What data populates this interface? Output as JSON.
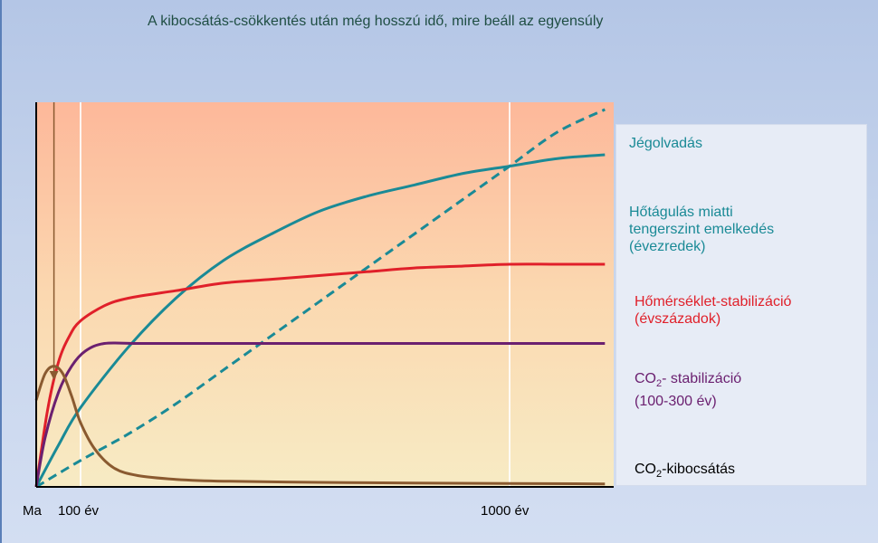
{
  "title": "A kibocsátás-csökkentés után még hosszú idő, mire beáll az egyensúly",
  "chart_data": {
    "type": "line",
    "title": "A kibocsátás-csökkentés után még hosszú idő, mire beáll az egyensúly",
    "xlabel": "",
    "ylabel": "",
    "x_ticks": [
      {
        "label": "Ma",
        "year": 0
      },
      {
        "label": "100 év",
        "year": 100
      },
      {
        "label": "1000 év",
        "year": 1000
      }
    ],
    "xlim": [
      0,
      1200
    ],
    "ylim": [
      0,
      1
    ],
    "grid": {
      "vertical_at_years": [
        100,
        1000
      ]
    },
    "background": {
      "top": "#fdb89a",
      "middle": "#fbd8b0",
      "bottom": "#f7ebc4"
    },
    "marker_arrow_year": 40,
    "series": [
      {
        "name": "Jégolvadás",
        "color": "#1a8a96",
        "dashed": true,
        "points": [
          [
            0,
            0
          ],
          [
            100,
            0.07
          ],
          [
            200,
            0.14
          ],
          [
            300,
            0.22
          ],
          [
            400,
            0.31
          ],
          [
            500,
            0.4
          ],
          [
            600,
            0.49
          ],
          [
            700,
            0.58
          ],
          [
            800,
            0.67
          ],
          [
            900,
            0.76
          ],
          [
            1000,
            0.85
          ],
          [
            1100,
            0.94
          ],
          [
            1200,
            1.0
          ]
        ]
      },
      {
        "name": "Hőtágulás miatti tengerszint emelkedés (évezredek)",
        "color": "#1a8a96",
        "dashed": false,
        "points": [
          [
            0,
            0
          ],
          [
            50,
            0.11
          ],
          [
            100,
            0.21
          ],
          [
            200,
            0.37
          ],
          [
            300,
            0.5
          ],
          [
            400,
            0.6
          ],
          [
            500,
            0.67
          ],
          [
            600,
            0.73
          ],
          [
            700,
            0.77
          ],
          [
            800,
            0.8
          ],
          [
            900,
            0.83
          ],
          [
            1000,
            0.85
          ],
          [
            1100,
            0.87
          ],
          [
            1200,
            0.88
          ]
        ]
      },
      {
        "name": "Hőmérséklet-stabilizáció (évszázadok)",
        "color": "#e0202a",
        "dashed": false,
        "points": [
          [
            0,
            0
          ],
          [
            25,
            0.2
          ],
          [
            50,
            0.33
          ],
          [
            75,
            0.4
          ],
          [
            100,
            0.44
          ],
          [
            150,
            0.48
          ],
          [
            200,
            0.5
          ],
          [
            300,
            0.52
          ],
          [
            400,
            0.54
          ],
          [
            500,
            0.55
          ],
          [
            600,
            0.56
          ],
          [
            700,
            0.57
          ],
          [
            800,
            0.58
          ],
          [
            900,
            0.585
          ],
          [
            1000,
            0.59
          ],
          [
            1100,
            0.59
          ],
          [
            1200,
            0.59
          ]
        ]
      },
      {
        "name": "CO2-stabilizáció (100-300 év)",
        "color": "#6b2070",
        "dashed": false,
        "points": [
          [
            0,
            0
          ],
          [
            20,
            0.13
          ],
          [
            50,
            0.25
          ],
          [
            80,
            0.32
          ],
          [
            110,
            0.36
          ],
          [
            150,
            0.38
          ],
          [
            220,
            0.38
          ],
          [
            400,
            0.38
          ],
          [
            600,
            0.38
          ],
          [
            800,
            0.38
          ],
          [
            1000,
            0.38
          ],
          [
            1200,
            0.38
          ]
        ]
      },
      {
        "name": "CO2-kibocsátás",
        "color": "#8a5a30",
        "dashed": false,
        "points": [
          [
            0,
            0.23
          ],
          [
            20,
            0.3
          ],
          [
            40,
            0.32
          ],
          [
            60,
            0.3
          ],
          [
            80,
            0.24
          ],
          [
            100,
            0.17
          ],
          [
            130,
            0.1
          ],
          [
            170,
            0.05
          ],
          [
            220,
            0.03
          ],
          [
            300,
            0.02
          ],
          [
            400,
            0.015
          ],
          [
            600,
            0.012
          ],
          [
            800,
            0.01
          ],
          [
            1000,
            0.009
          ],
          [
            1200,
            0.008
          ]
        ]
      }
    ]
  },
  "legend": {
    "ice": "Jégolvadás",
    "thermal_line1": "Hőtágulás miatti",
    "thermal_line2": "tengerszint emelkedés",
    "thermal_line3": "(évezredek)",
    "temp_line1": "Hőmérséklet-stabilizáció",
    "temp_line2": "(évszázadok)",
    "co2stab_co": "CO",
    "co2stab_sub": "2",
    "co2stab_rest": "- stabilizáció",
    "co2stab_line2": "(100-300 év)",
    "co2em_co": "CO",
    "co2em_sub": "2",
    "co2em_rest": "-kibocsátás"
  },
  "colors": {
    "teal": "#1a8a96",
    "red": "#e0202a",
    "purple": "#6b2070",
    "brown": "#8a5a30",
    "title": "#1f4e43"
  }
}
